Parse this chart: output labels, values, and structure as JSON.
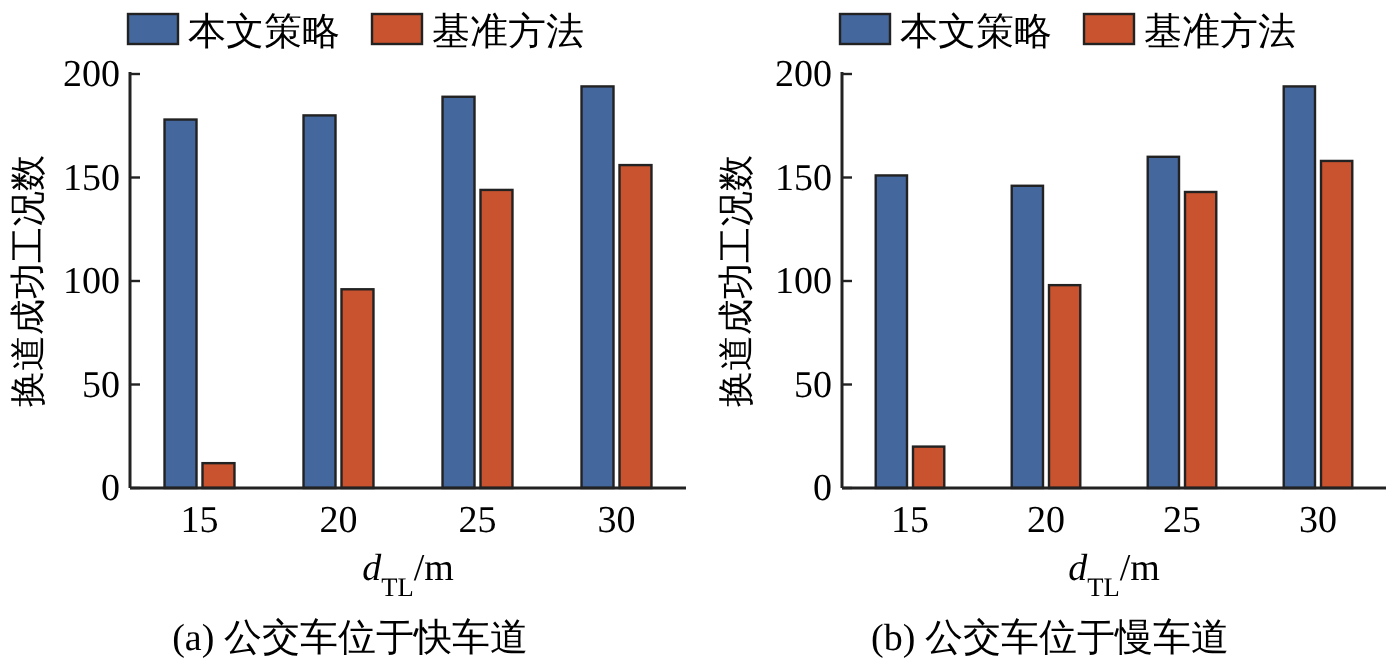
{
  "chart_data": [
    {
      "type": "bar",
      "categories": [
        "15",
        "20",
        "25",
        "30"
      ],
      "xlabel": "d$_{TL}$/m",
      "ylabel": "换道成功工况数",
      "ylim": [
        0,
        200
      ],
      "yticks": [
        0,
        50,
        100,
        150,
        200
      ],
      "legend": "top",
      "annotations": [
        "(a) 公交车位于快车道"
      ],
      "series": [
        {
          "name": "本文策略",
          "color": "#44679e",
          "values": [
            178,
            180,
            189,
            194
          ]
        },
        {
          "name": "基准方法",
          "color": "#c9532e",
          "values": [
            12,
            96,
            144,
            156
          ]
        }
      ]
    },
    {
      "type": "bar",
      "categories": [
        "15",
        "20",
        "25",
        "30"
      ],
      "xlabel": "d$_{TL}$/m",
      "ylabel": "换道成功工况数",
      "ylim": [
        0,
        200
      ],
      "yticks": [
        0,
        50,
        100,
        150,
        200
      ],
      "legend": "top",
      "annotations": [
        "(b) 公交车位于慢车道"
      ],
      "series": [
        {
          "name": "本文策略",
          "color": "#44679e",
          "values": [
            151,
            146,
            160,
            194
          ]
        },
        {
          "name": "基准方法",
          "color": "#c9532e",
          "values": [
            20,
            98,
            143,
            158
          ]
        }
      ]
    }
  ]
}
